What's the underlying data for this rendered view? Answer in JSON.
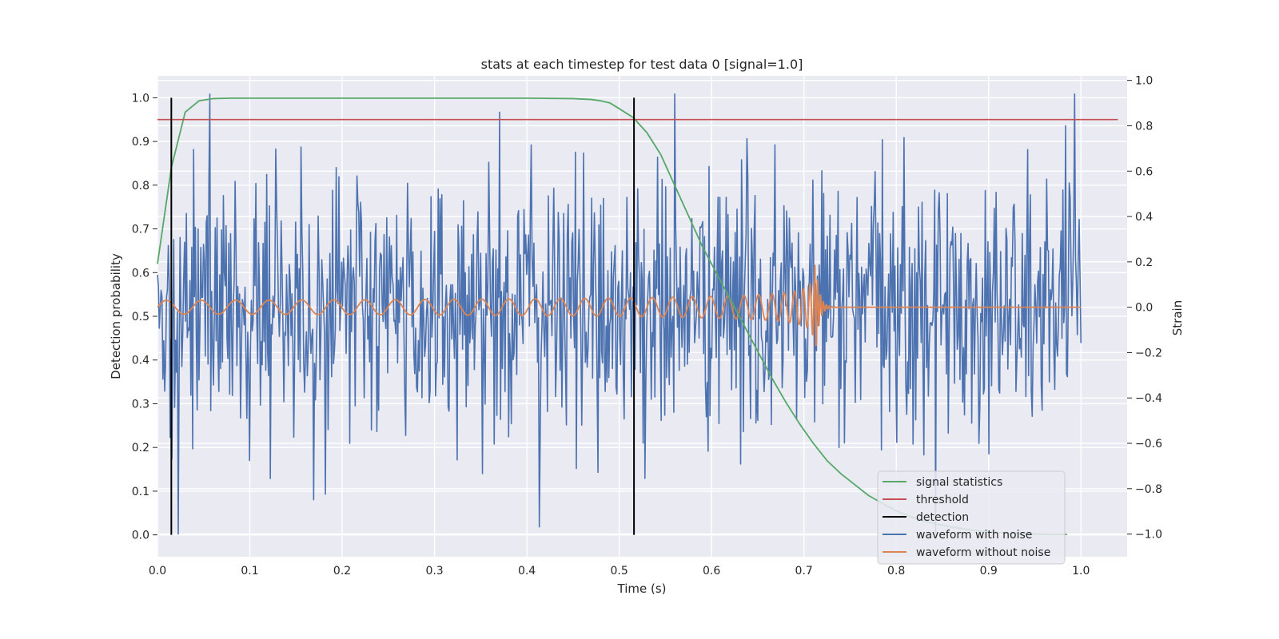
{
  "chart_data": {
    "type": "line",
    "title": "stats at each timestep for test data 0 [signal=1.0]",
    "xlabel": "Time (s)",
    "ylabel_left": "Detection probability",
    "ylabel_right": "Strain",
    "xlim": [
      0.0,
      1.05
    ],
    "ylim_left": [
      -0.05,
      1.05
    ],
    "ylim_right": [
      -1.1,
      1.02
    ],
    "x_ticks": [
      "0.0",
      "0.1",
      "0.2",
      "0.3",
      "0.4",
      "0.5",
      "0.6",
      "0.7",
      "0.8",
      "0.9",
      "1.0"
    ],
    "y_left_ticks": [
      "0.0",
      "0.1",
      "0.2",
      "0.3",
      "0.4",
      "0.5",
      "0.6",
      "0.7",
      "0.8",
      "0.9",
      "1.0"
    ],
    "y_right_ticks": [
      "−1.0",
      "−0.8",
      "−0.6",
      "−0.4",
      "−0.2",
      "0.0",
      "0.2",
      "0.4",
      "0.6",
      "0.8",
      "1.0"
    ],
    "grid": true,
    "legend_position": "lower-right",
    "colors": {
      "background": "#eaeaf2",
      "grid": "#ffffff",
      "signal_statistics": "#55a868",
      "threshold": "#c44e52",
      "detection": "#000000",
      "waveform_with_noise": "#4c72b0",
      "waveform_without_noise": "#dd8452"
    },
    "series": [
      {
        "name": "signal statistics",
        "axis": "left",
        "x": [
          0.0,
          0.015,
          0.03,
          0.045,
          0.06,
          0.08,
          0.1,
          0.2,
          0.3,
          0.4,
          0.45,
          0.47,
          0.48,
          0.49,
          0.5,
          0.515,
          0.53,
          0.545,
          0.56,
          0.575,
          0.59,
          0.605,
          0.62,
          0.635,
          0.65,
          0.665,
          0.68,
          0.695,
          0.71,
          0.725,
          0.74,
          0.755,
          0.77,
          0.785,
          0.8,
          0.815,
          0.83,
          0.845,
          0.86,
          0.875,
          0.89,
          0.905,
          0.92,
          0.935,
          0.95,
          0.965,
          0.985
        ],
        "y": [
          0.62,
          0.84,
          0.967,
          0.993,
          0.998,
          0.999,
          0.999,
          0.999,
          0.999,
          0.999,
          0.998,
          0.996,
          0.993,
          0.988,
          0.975,
          0.955,
          0.92,
          0.87,
          0.8,
          0.73,
          0.66,
          0.6,
          0.54,
          0.48,
          0.42,
          0.36,
          0.305,
          0.255,
          0.21,
          0.17,
          0.14,
          0.115,
          0.09,
          0.072,
          0.055,
          0.042,
          0.032,
          0.024,
          0.018,
          0.013,
          0.009,
          0.006,
          0.004,
          0.003,
          0.002,
          0.001,
          0.001
        ]
      },
      {
        "name": "threshold",
        "axis": "left",
        "x": [
          0.0,
          1.04
        ],
        "y": [
          0.95,
          0.95
        ]
      },
      {
        "name": "detection",
        "axis": "left",
        "segments": [
          {
            "x": 0.015,
            "y": [
              0.0,
              1.0
            ]
          },
          {
            "x": 0.516,
            "y": [
              0.0,
              1.0
            ]
          }
        ]
      },
      {
        "name": "waveform with noise",
        "axis": "right",
        "x_range": [
          0.0,
          1.0
        ],
        "samples": 1024,
        "y_range_approx": [
          -1.0,
          0.94
        ],
        "peaks": [
          {
            "x": 0.057,
            "y": 0.94
          },
          {
            "x": 0.022,
            "y": -1.0
          },
          {
            "x": 0.983,
            "y": 0.8
          },
          {
            "x": 0.37,
            "y": 0.86
          }
        ]
      },
      {
        "name": "waveform without noise",
        "axis": "right",
        "x_range": [
          0.0,
          1.0
        ],
        "merger_time": 0.712,
        "amplitude_start": 0.03,
        "peak_amplitude": 0.24,
        "freq_start_hz": 26
      }
    ]
  }
}
